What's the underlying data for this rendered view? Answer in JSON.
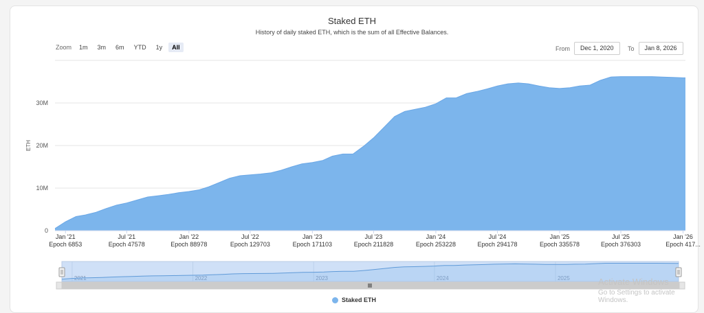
{
  "rangeSelector": {
    "zoom_label": "Zoom",
    "buttons": [
      "1m",
      "3m",
      "6m",
      "YTD",
      "1y",
      "All"
    ],
    "selected": "All",
    "from_label": "From",
    "from_value": "Dec 1, 2020",
    "to_label": "To",
    "to_value": "Jan 8, 2026"
  },
  "colors": {
    "series": "#7cb5ec",
    "grid": "#e6e6e6",
    "navigator_mask": "#cfe0f7"
  },
  "watermark": {
    "line1": "Activate Windows",
    "line2": "Go to Settings to activate Windows."
  },
  "chart_data": {
    "type": "area",
    "title": "Staked ETH",
    "subtitle": "History of daily staked ETH, which is the sum of all Effective Balances.",
    "ylabel": "ETH",
    "ylim": [
      0,
      40000000
    ],
    "yticks": [
      0,
      10000000,
      20000000,
      30000000
    ],
    "ytick_labels": [
      "0",
      "10M",
      "20M",
      "30M"
    ],
    "xlim": [
      "2020-12-01",
      "2026-01-08"
    ],
    "xticks": [
      {
        "date": "2021-01-01",
        "label": "Jan '21",
        "epoch": "Epoch 6853"
      },
      {
        "date": "2021-07-01",
        "label": "Jul '21",
        "epoch": "Epoch 47578"
      },
      {
        "date": "2022-01-01",
        "label": "Jan '22",
        "epoch": "Epoch 88978"
      },
      {
        "date": "2022-07-01",
        "label": "Jul '22",
        "epoch": "Epoch 129703"
      },
      {
        "date": "2023-01-01",
        "label": "Jan '23",
        "epoch": "Epoch 171103"
      },
      {
        "date": "2023-07-01",
        "label": "Jul '23",
        "epoch": "Epoch 211828"
      },
      {
        "date": "2024-01-01",
        "label": "Jan '24",
        "epoch": "Epoch 253228"
      },
      {
        "date": "2024-07-01",
        "label": "Jul '24",
        "epoch": "Epoch 294178"
      },
      {
        "date": "2025-01-01",
        "label": "Jan '25",
        "epoch": "Epoch 335578"
      },
      {
        "date": "2025-07-01",
        "label": "Jul '25",
        "epoch": "Epoch 376303"
      },
      {
        "date": "2026-01-01",
        "label": "Jan '26",
        "epoch": "Epoch 417..."
      }
    ],
    "series": [
      {
        "name": "Staked ETH",
        "points": [
          [
            "2020-12-01",
            500000
          ],
          [
            "2021-01-01",
            2100000
          ],
          [
            "2021-02-01",
            3300000
          ],
          [
            "2021-03-01",
            3700000
          ],
          [
            "2021-04-01",
            4300000
          ],
          [
            "2021-05-01",
            5200000
          ],
          [
            "2021-06-01",
            6000000
          ],
          [
            "2021-07-01",
            6500000
          ],
          [
            "2021-08-01",
            7200000
          ],
          [
            "2021-09-01",
            7900000
          ],
          [
            "2021-10-01",
            8200000
          ],
          [
            "2021-11-01",
            8500000
          ],
          [
            "2021-12-01",
            8900000
          ],
          [
            "2022-01-01",
            9200000
          ],
          [
            "2022-02-01",
            9600000
          ],
          [
            "2022-03-01",
            10300000
          ],
          [
            "2022-04-01",
            11300000
          ],
          [
            "2022-05-01",
            12300000
          ],
          [
            "2022-06-01",
            12900000
          ],
          [
            "2022-07-01",
            13100000
          ],
          [
            "2022-08-01",
            13300000
          ],
          [
            "2022-09-01",
            13600000
          ],
          [
            "2022-10-01",
            14200000
          ],
          [
            "2022-11-01",
            15000000
          ],
          [
            "2022-12-01",
            15700000
          ],
          [
            "2023-01-01",
            16000000
          ],
          [
            "2023-02-01",
            16500000
          ],
          [
            "2023-03-01",
            17500000
          ],
          [
            "2023-04-01",
            18000000
          ],
          [
            "2023-05-01",
            18000000
          ],
          [
            "2023-06-01",
            19800000
          ],
          [
            "2023-07-01",
            21800000
          ],
          [
            "2023-08-01",
            24300000
          ],
          [
            "2023-09-01",
            26800000
          ],
          [
            "2023-10-01",
            28000000
          ],
          [
            "2023-11-01",
            28500000
          ],
          [
            "2023-12-01",
            29000000
          ],
          [
            "2024-01-01",
            29800000
          ],
          [
            "2024-02-01",
            31200000
          ],
          [
            "2024-03-01",
            31200000
          ],
          [
            "2024-04-01",
            32200000
          ],
          [
            "2024-05-01",
            32700000
          ],
          [
            "2024-06-01",
            33300000
          ],
          [
            "2024-07-01",
            34000000
          ],
          [
            "2024-08-01",
            34500000
          ],
          [
            "2024-09-01",
            34700000
          ],
          [
            "2024-10-01",
            34500000
          ],
          [
            "2024-11-01",
            34000000
          ],
          [
            "2024-12-01",
            33600000
          ],
          [
            "2025-01-01",
            33400000
          ],
          [
            "2025-02-01",
            33600000
          ],
          [
            "2025-03-01",
            34000000
          ],
          [
            "2025-04-01",
            34200000
          ],
          [
            "2025-05-01",
            35300000
          ],
          [
            "2025-06-01",
            36100000
          ],
          [
            "2025-07-01",
            36200000
          ],
          [
            "2025-08-01",
            36200000
          ],
          [
            "2025-09-01",
            36200000
          ],
          [
            "2025-10-01",
            36200000
          ],
          [
            "2025-11-01",
            36100000
          ],
          [
            "2025-12-01",
            36000000
          ],
          [
            "2026-01-01",
            35900000
          ],
          [
            "2026-01-08",
            35900000
          ]
        ]
      }
    ],
    "navigator": {
      "labels": [
        "2021",
        "2022",
        "2023",
        "2024",
        "2025"
      ],
      "label_dates": [
        "2021-01-01",
        "2022-01-01",
        "2023-01-01",
        "2024-01-01",
        "2025-01-01"
      ]
    },
    "legend": {
      "position": "bottom-center",
      "label": "Staked ETH"
    },
    "grid": true
  }
}
